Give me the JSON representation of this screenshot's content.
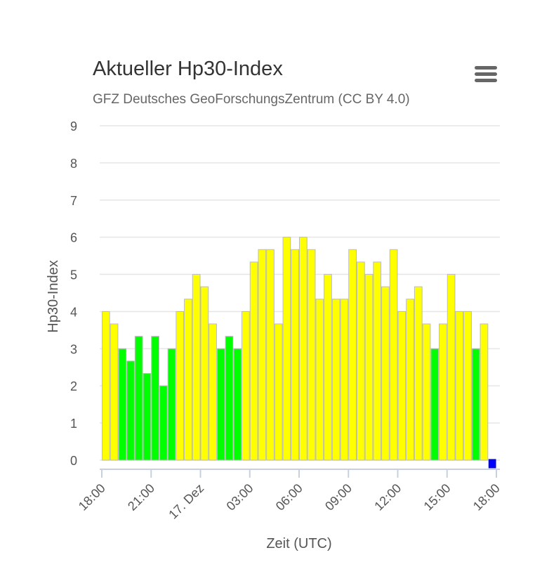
{
  "menu_icon": "hamburger-menu-icon",
  "chart_data": {
    "type": "bar",
    "title": "Aktueller Hp30-Index",
    "subtitle": "GFZ Deutsches GeoForschungsZentrum (CC BY 4.0)",
    "xlabel": "Zeit (UTC)",
    "ylabel": "Hp30-Index",
    "ylim": [
      0,
      9
    ],
    "yticks": [
      "0",
      "1",
      "2",
      "3",
      "4",
      "5",
      "6",
      "7",
      "8",
      "9"
    ],
    "xticks": [
      "18:00",
      "21:00",
      "17. Dez",
      "03:00",
      "06:00",
      "09:00",
      "12:00",
      "15:00",
      "18:00"
    ],
    "grid": true,
    "values": [
      4,
      3.667,
      3,
      2.667,
      3.333,
      2.333,
      3.333,
      2,
      3,
      4,
      4.333,
      5,
      4.667,
      3.667,
      3,
      3.333,
      3,
      4,
      5.333,
      5.667,
      5.667,
      3.667,
      6,
      5.667,
      6,
      5.667,
      4.333,
      5,
      4.333,
      4.333,
      5.667,
      5.333,
      5,
      5.333,
      4.667,
      5.667,
      4,
      4.333,
      4.667,
      3.667,
      3,
      3.667,
      5,
      4,
      4,
      3,
      3.667,
      0
    ],
    "colors": {
      "quiet": "#00ff00",
      "active": "#ffff00",
      "current": "#0000ff",
      "gridline": "#e6e6e6",
      "border": "#bbbbbb"
    }
  }
}
